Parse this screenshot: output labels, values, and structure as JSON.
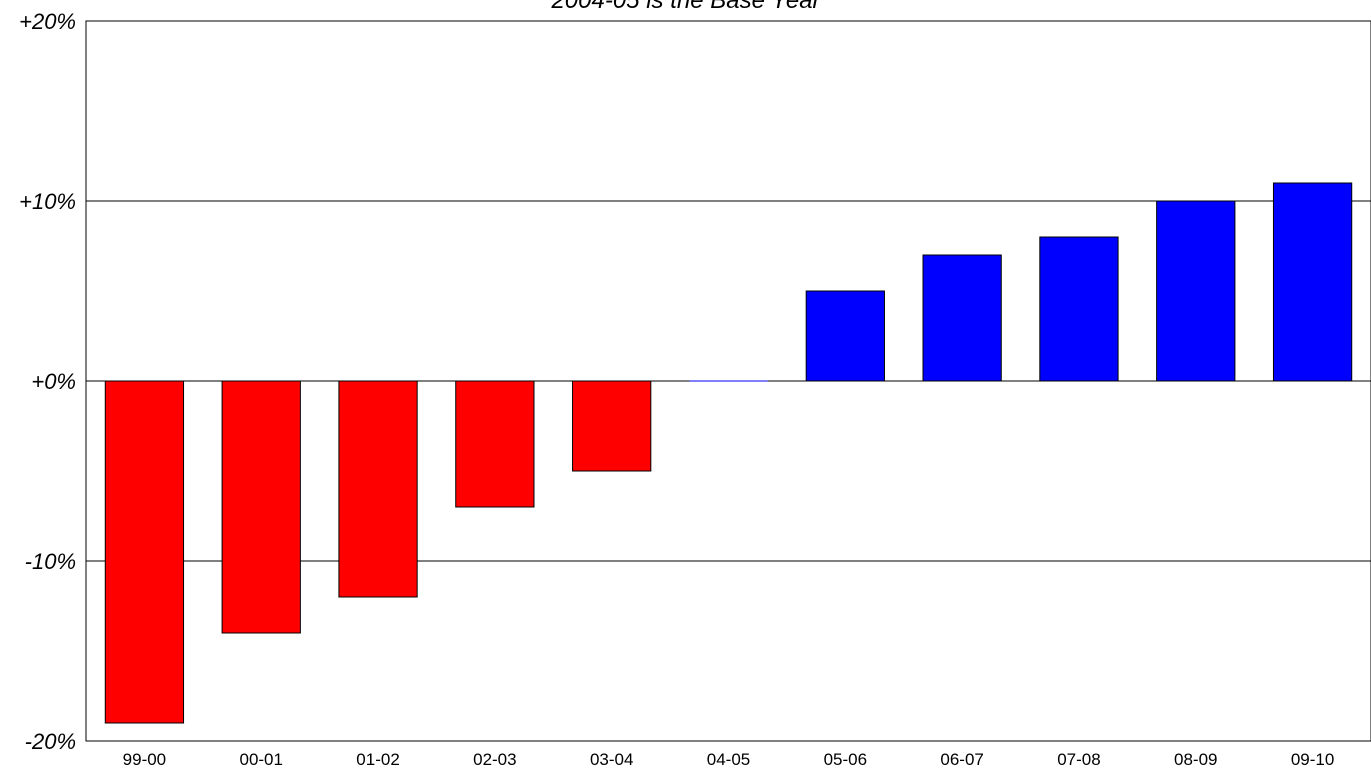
{
  "chart_data": {
    "type": "bar",
    "title": "",
    "subtitle": "2004-05 is the Base Year",
    "xlabel": "",
    "ylabel": "",
    "categories": [
      "99-00",
      "00-01",
      "01-02",
      "02-03",
      "03-04",
      "04-05",
      "05-06",
      "06-07",
      "07-08",
      "08-09",
      "09-10"
    ],
    "series": [
      {
        "values": [
          -19,
          -14,
          -12,
          -7,
          -5,
          0,
          5,
          7,
          8,
          10,
          11
        ]
      }
    ],
    "ylim": [
      -20,
      20
    ],
    "yticks": [
      20,
      10,
      0,
      -10,
      -20
    ],
    "ytick_labels": [
      "+20%",
      "+10%",
      "+0%",
      "-10%",
      "-20%"
    ],
    "grid": "horizontal",
    "colors": {
      "negative": "#ff0000",
      "positive": "#0000ff",
      "zero": "#0000ff",
      "grid": "#000000"
    }
  }
}
